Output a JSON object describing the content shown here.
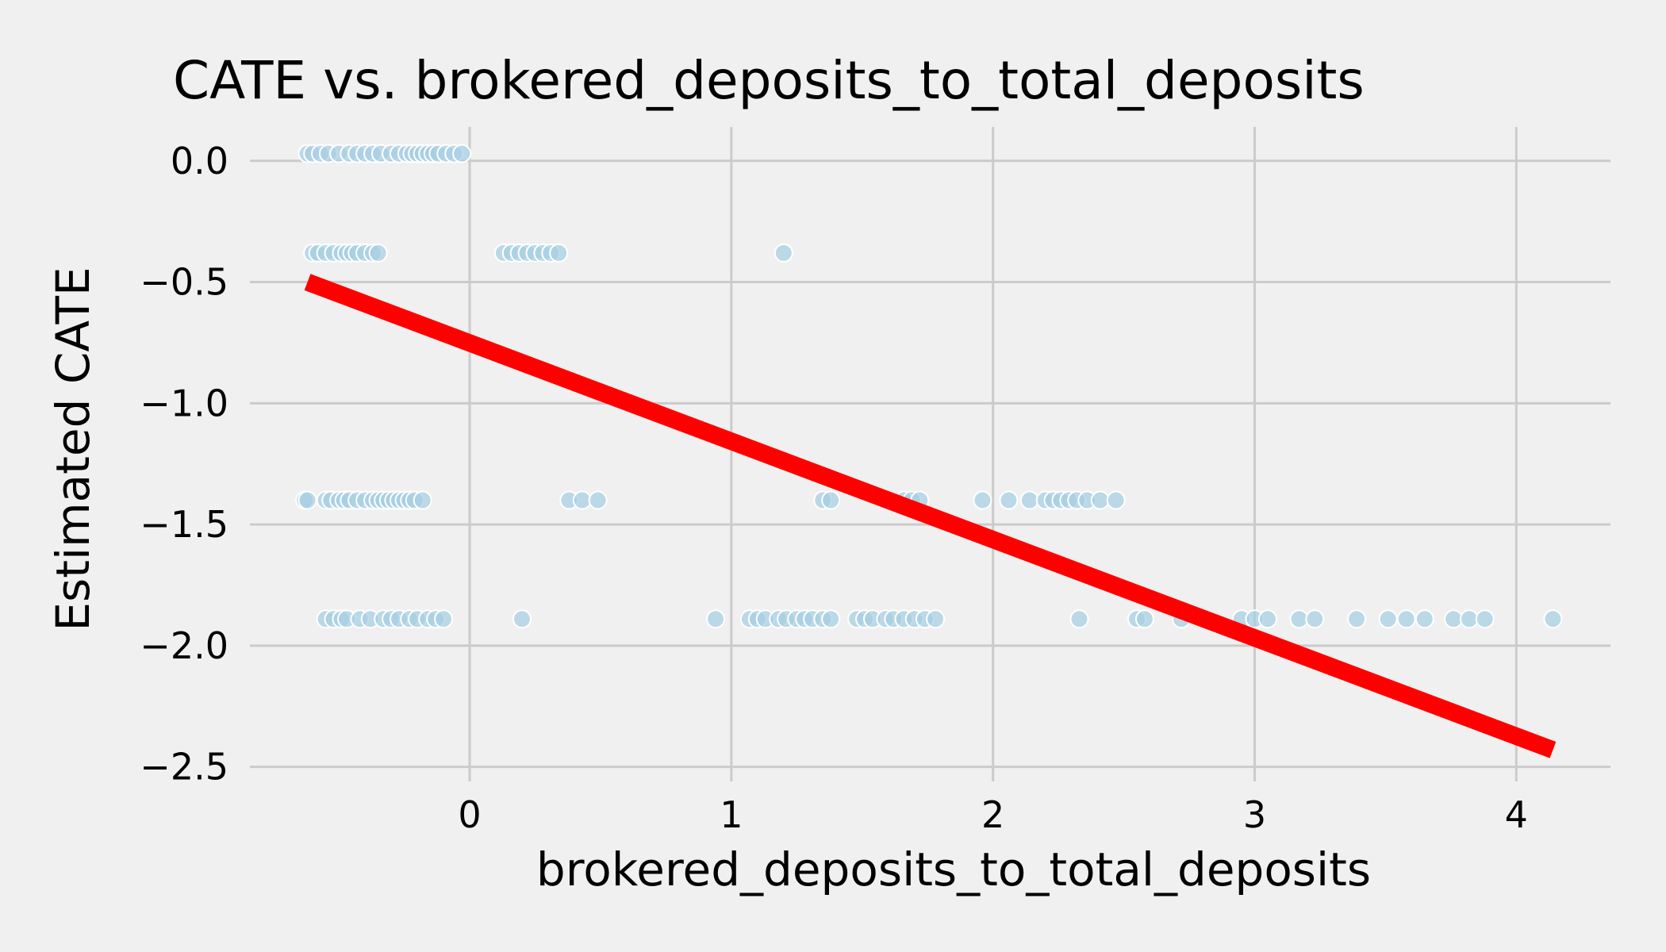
{
  "chart_data": {
    "type": "scatter",
    "title": "CATE vs. brokered_deposits_to_total_deposits",
    "xlabel": "brokered_deposits_to_total_deposits",
    "ylabel": "Estimated CATE",
    "xlim": [
      -0.84,
      4.36
    ],
    "ylim": [
      -2.56,
      0.14
    ],
    "x_ticks": [
      0,
      1,
      2,
      3,
      4
    ],
    "x_tick_labels": [
      "0",
      "1",
      "2",
      "3",
      "4"
    ],
    "y_ticks": [
      0.0,
      -0.5,
      -1.0,
      -1.5,
      -2.0,
      -2.5
    ],
    "y_tick_labels": [
      "0.0",
      "−0.5",
      "−1.0",
      "−1.5",
      "−2.0",
      "−2.5"
    ],
    "grid": true,
    "colors": {
      "points": "#a6cee3",
      "fit_line": "#ff0000",
      "background": "#f0f0f0",
      "grid": "#cbcbcb"
    },
    "points": [
      {
        "x": -0.62,
        "y": 0.03
      },
      {
        "x": -0.6,
        "y": 0.03
      },
      {
        "x": -0.57,
        "y": 0.03
      },
      {
        "x": -0.54,
        "y": 0.03
      },
      {
        "x": -0.5,
        "y": 0.03
      },
      {
        "x": -0.46,
        "y": 0.03
      },
      {
        "x": -0.43,
        "y": 0.03
      },
      {
        "x": -0.4,
        "y": 0.03
      },
      {
        "x": -0.37,
        "y": 0.03
      },
      {
        "x": -0.34,
        "y": 0.03
      },
      {
        "x": -0.3,
        "y": 0.03
      },
      {
        "x": -0.27,
        "y": 0.03
      },
      {
        "x": -0.24,
        "y": 0.03
      },
      {
        "x": -0.22,
        "y": 0.03
      },
      {
        "x": -0.2,
        "y": 0.03
      },
      {
        "x": -0.18,
        "y": 0.03
      },
      {
        "x": -0.16,
        "y": 0.03
      },
      {
        "x": -0.14,
        "y": 0.03
      },
      {
        "x": -0.12,
        "y": 0.03
      },
      {
        "x": -0.09,
        "y": 0.03
      },
      {
        "x": -0.06,
        "y": 0.03
      },
      {
        "x": -0.03,
        "y": 0.03
      },
      {
        "x": -0.6,
        "y": -0.38
      },
      {
        "x": -0.58,
        "y": -0.38
      },
      {
        "x": -0.55,
        "y": -0.38
      },
      {
        "x": -0.52,
        "y": -0.38
      },
      {
        "x": -0.49,
        "y": -0.38
      },
      {
        "x": -0.47,
        "y": -0.38
      },
      {
        "x": -0.45,
        "y": -0.38
      },
      {
        "x": -0.43,
        "y": -0.38
      },
      {
        "x": -0.4,
        "y": -0.38
      },
      {
        "x": -0.37,
        "y": -0.38
      },
      {
        "x": -0.35,
        "y": -0.38
      },
      {
        "x": 0.13,
        "y": -0.38
      },
      {
        "x": 0.16,
        "y": -0.38
      },
      {
        "x": 0.19,
        "y": -0.38
      },
      {
        "x": 0.22,
        "y": -0.38
      },
      {
        "x": 0.25,
        "y": -0.38
      },
      {
        "x": 0.28,
        "y": -0.38
      },
      {
        "x": 0.31,
        "y": -0.38
      },
      {
        "x": 0.34,
        "y": -0.38
      },
      {
        "x": 1.2,
        "y": -0.38
      },
      {
        "x": -0.63,
        "y": -1.4
      },
      {
        "x": -0.62,
        "y": -1.4
      },
      {
        "x": -0.55,
        "y": -1.4
      },
      {
        "x": -0.53,
        "y": -1.4
      },
      {
        "x": -0.5,
        "y": -1.4
      },
      {
        "x": -0.48,
        "y": -1.4
      },
      {
        "x": -0.46,
        "y": -1.4
      },
      {
        "x": -0.43,
        "y": -1.4
      },
      {
        "x": -0.4,
        "y": -1.4
      },
      {
        "x": -0.37,
        "y": -1.4
      },
      {
        "x": -0.35,
        "y": -1.4
      },
      {
        "x": -0.33,
        "y": -1.4
      },
      {
        "x": -0.31,
        "y": -1.4
      },
      {
        "x": -0.29,
        "y": -1.4
      },
      {
        "x": -0.27,
        "y": -1.4
      },
      {
        "x": -0.25,
        "y": -1.4
      },
      {
        "x": -0.23,
        "y": -1.4
      },
      {
        "x": -0.21,
        "y": -1.4
      },
      {
        "x": -0.18,
        "y": -1.4
      },
      {
        "x": 0.38,
        "y": -1.4
      },
      {
        "x": 0.43,
        "y": -1.4
      },
      {
        "x": 0.49,
        "y": -1.4
      },
      {
        "x": 1.35,
        "y": -1.4
      },
      {
        "x": 1.38,
        "y": -1.4
      },
      {
        "x": 1.66,
        "y": -1.4
      },
      {
        "x": 1.69,
        "y": -1.4
      },
      {
        "x": 1.72,
        "y": -1.4
      },
      {
        "x": 1.96,
        "y": -1.4
      },
      {
        "x": 2.06,
        "y": -1.4
      },
      {
        "x": 2.14,
        "y": -1.4
      },
      {
        "x": 2.2,
        "y": -1.4
      },
      {
        "x": 2.23,
        "y": -1.4
      },
      {
        "x": 2.26,
        "y": -1.4
      },
      {
        "x": 2.29,
        "y": -1.4
      },
      {
        "x": 2.32,
        "y": -1.4
      },
      {
        "x": 2.36,
        "y": -1.4
      },
      {
        "x": 2.41,
        "y": -1.4
      },
      {
        "x": 2.47,
        "y": -1.4
      },
      {
        "x": -0.55,
        "y": -1.89
      },
      {
        "x": -0.52,
        "y": -1.89
      },
      {
        "x": -0.49,
        "y": -1.89
      },
      {
        "x": -0.47,
        "y": -1.89
      },
      {
        "x": -0.42,
        "y": -1.89
      },
      {
        "x": -0.38,
        "y": -1.89
      },
      {
        "x": -0.33,
        "y": -1.89
      },
      {
        "x": -0.3,
        "y": -1.89
      },
      {
        "x": -0.27,
        "y": -1.89
      },
      {
        "x": -0.23,
        "y": -1.89
      },
      {
        "x": -0.2,
        "y": -1.89
      },
      {
        "x": -0.16,
        "y": -1.89
      },
      {
        "x": -0.13,
        "y": -1.89
      },
      {
        "x": -0.1,
        "y": -1.89
      },
      {
        "x": 0.2,
        "y": -1.89
      },
      {
        "x": 0.94,
        "y": -1.89
      },
      {
        "x": 1.07,
        "y": -1.89
      },
      {
        "x": 1.1,
        "y": -1.89
      },
      {
        "x": 1.13,
        "y": -1.89
      },
      {
        "x": 1.18,
        "y": -1.89
      },
      {
        "x": 1.21,
        "y": -1.89
      },
      {
        "x": 1.25,
        "y": -1.89
      },
      {
        "x": 1.28,
        "y": -1.89
      },
      {
        "x": 1.31,
        "y": -1.89
      },
      {
        "x": 1.35,
        "y": -1.89
      },
      {
        "x": 1.38,
        "y": -1.89
      },
      {
        "x": 1.48,
        "y": -1.89
      },
      {
        "x": 1.51,
        "y": -1.89
      },
      {
        "x": 1.54,
        "y": -1.89
      },
      {
        "x": 1.59,
        "y": -1.89
      },
      {
        "x": 1.62,
        "y": -1.89
      },
      {
        "x": 1.66,
        "y": -1.89
      },
      {
        "x": 1.7,
        "y": -1.89
      },
      {
        "x": 1.74,
        "y": -1.89
      },
      {
        "x": 1.78,
        "y": -1.89
      },
      {
        "x": 2.33,
        "y": -1.89
      },
      {
        "x": 2.55,
        "y": -1.89
      },
      {
        "x": 2.58,
        "y": -1.89
      },
      {
        "x": 2.72,
        "y": -1.89
      },
      {
        "x": 2.95,
        "y": -1.89
      },
      {
        "x": 3.0,
        "y": -1.89
      },
      {
        "x": 3.05,
        "y": -1.89
      },
      {
        "x": 3.17,
        "y": -1.89
      },
      {
        "x": 3.23,
        "y": -1.89
      },
      {
        "x": 3.39,
        "y": -1.89
      },
      {
        "x": 3.51,
        "y": -1.89
      },
      {
        "x": 3.58,
        "y": -1.89
      },
      {
        "x": 3.65,
        "y": -1.89
      },
      {
        "x": 3.76,
        "y": -1.89
      },
      {
        "x": 3.82,
        "y": -1.89
      },
      {
        "x": 3.88,
        "y": -1.89
      },
      {
        "x": 4.14,
        "y": -1.89
      }
    ],
    "fit_line": {
      "x": [
        -0.62,
        4.14
      ],
      "y": [
        -0.5,
        -2.43
      ]
    }
  }
}
